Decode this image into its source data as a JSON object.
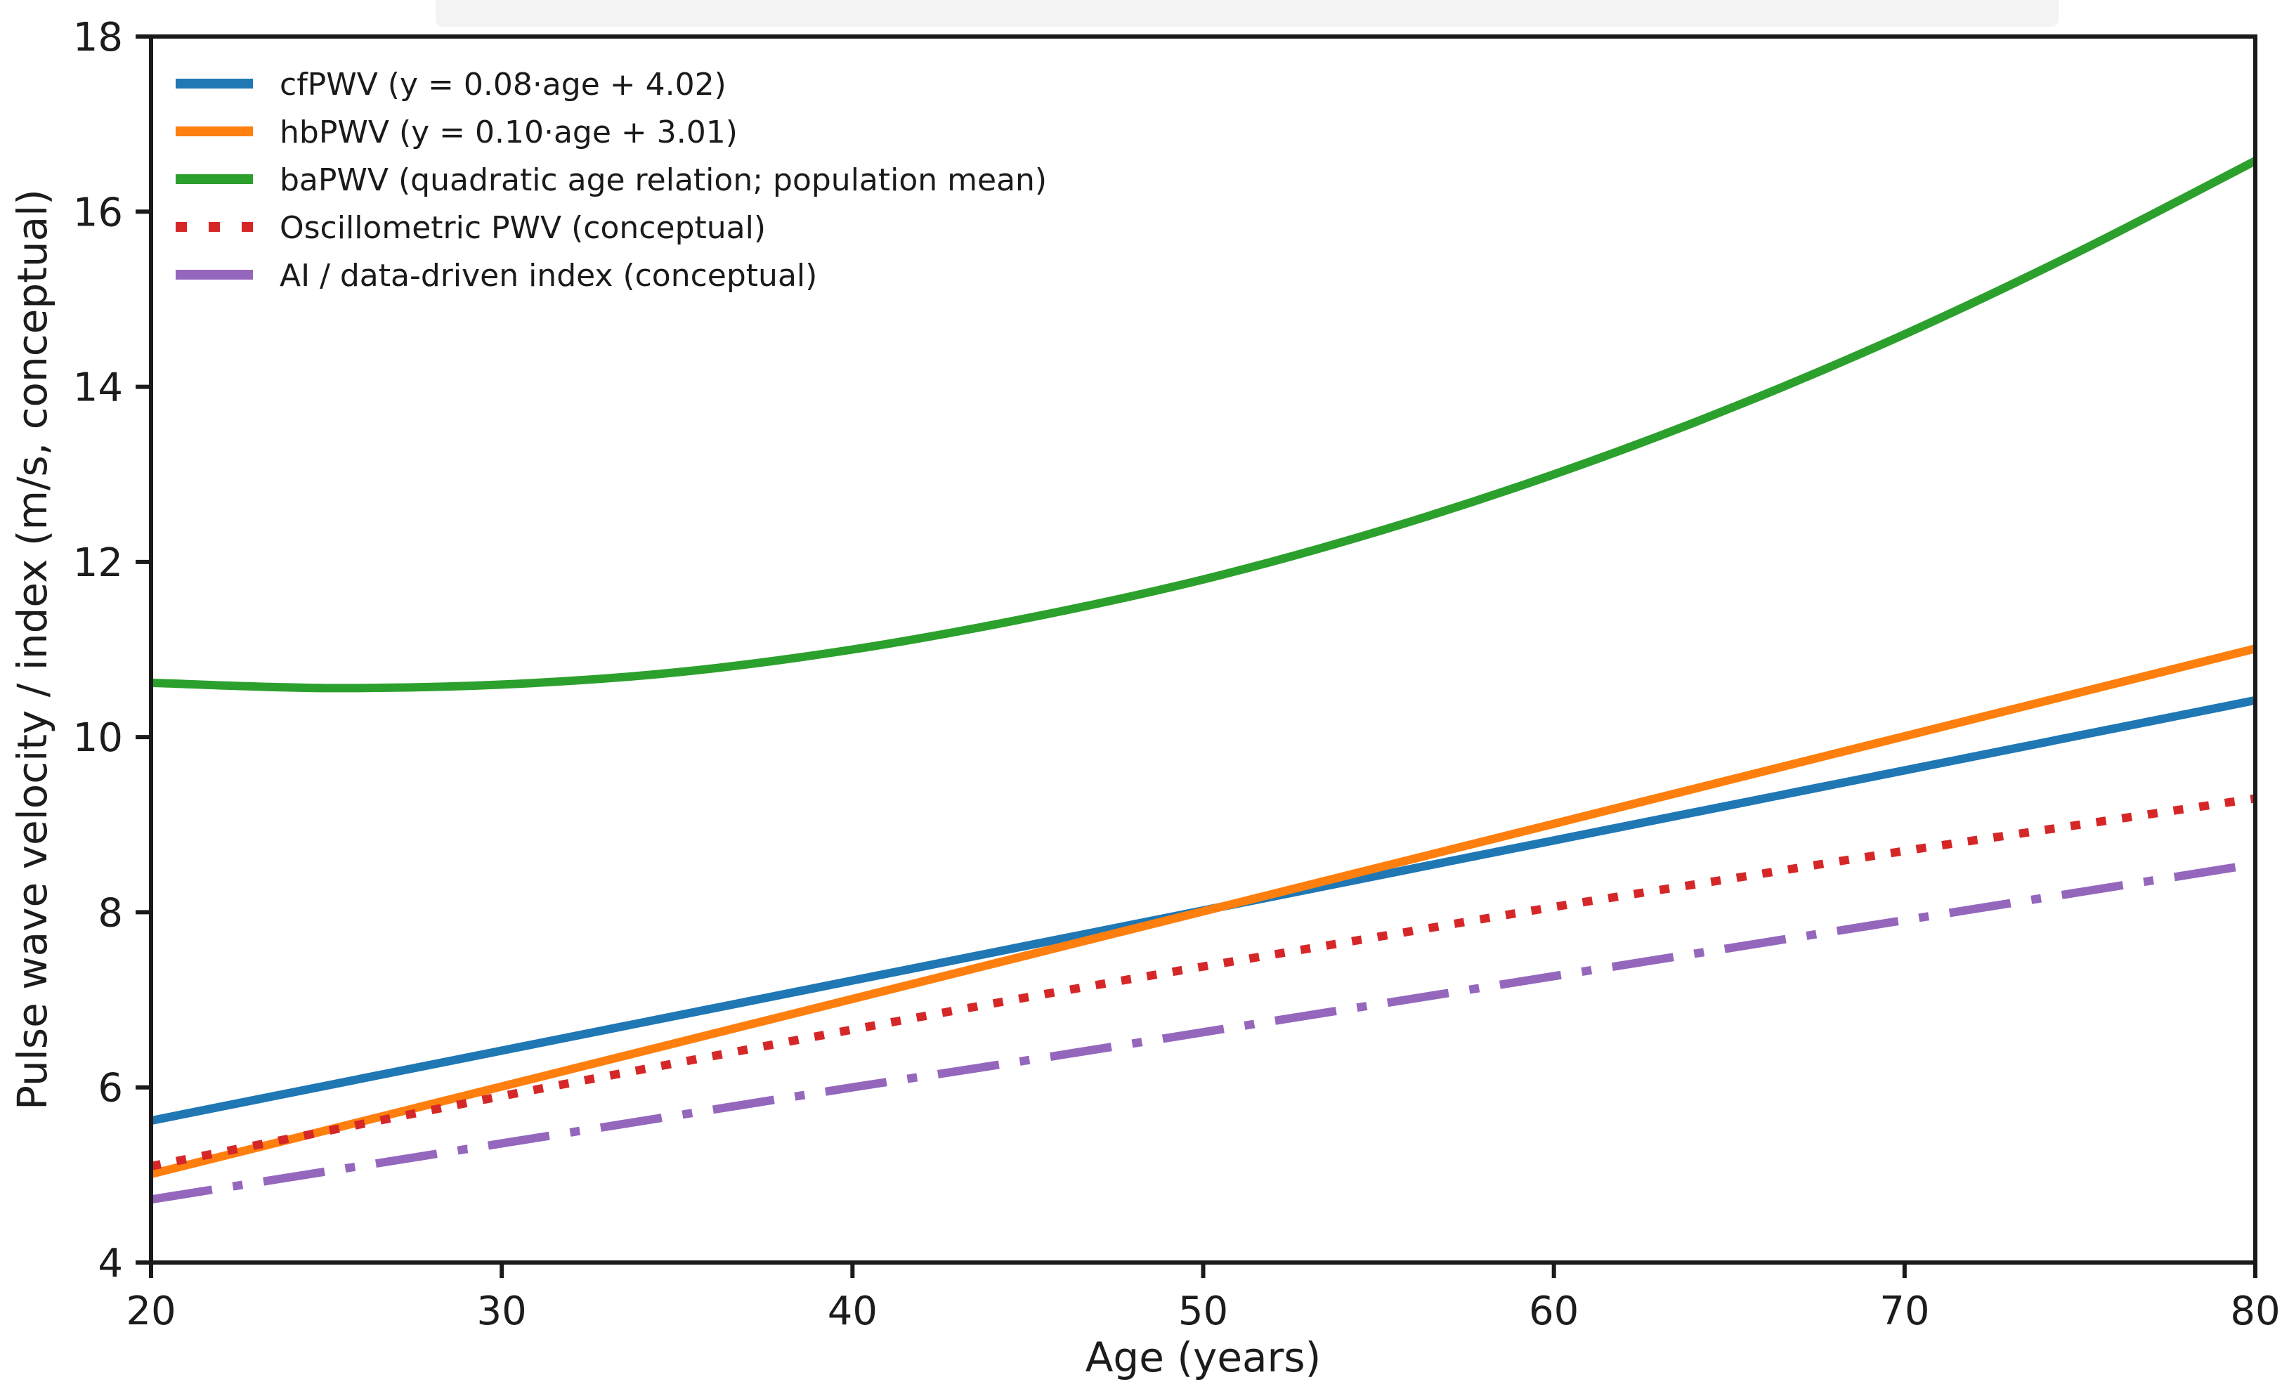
{
  "chart_data": {
    "type": "line",
    "title": "",
    "xlabel": "Age (years)",
    "ylabel": "Pulse wave velocity / index (m/s, conceptual)",
    "xlim": [
      20,
      80
    ],
    "ylim": [
      4,
      18
    ],
    "xticks": [
      20,
      30,
      40,
      50,
      60,
      70,
      80
    ],
    "yticks": [
      4,
      6,
      8,
      10,
      12,
      14,
      16,
      18
    ],
    "grid": false,
    "legend_position": "upper left",
    "x": [
      20,
      25,
      30,
      35,
      40,
      45,
      50,
      55,
      60,
      65,
      70,
      75,
      80
    ],
    "series": [
      {
        "name": "cfPWV (y = 0.08·age + 4.02)",
        "color": "#1f77b4",
        "style": "solid",
        "values": [
          5.62,
          6.02,
          6.42,
          6.82,
          7.22,
          7.62,
          8.02,
          8.42,
          8.82,
          9.22,
          9.62,
          10.02,
          10.42
        ]
      },
      {
        "name": "hbPWV (y = 0.10·age + 3.01)",
        "color": "#ff7f0e",
        "style": "solid",
        "values": [
          5.01,
          5.51,
          6.01,
          6.51,
          7.01,
          7.51,
          8.01,
          8.51,
          9.01,
          9.51,
          10.01,
          10.51,
          11.01
        ]
      },
      {
        "name": "baPWV (quadratic age relation; population mean)",
        "color": "#2ca02c",
        "style": "solid",
        "values": [
          10.62,
          10.56,
          10.6,
          10.74,
          11.0,
          11.36,
          11.8,
          12.35,
          13.0,
          13.75,
          14.6,
          15.55,
          16.58
        ]
      },
      {
        "name": "Oscillometric PWV (conceptual)",
        "color": "#d62728",
        "style": "dotted",
        "values": [
          5.1,
          5.5,
          5.9,
          6.28,
          6.66,
          7.03,
          7.38,
          7.72,
          8.06,
          8.38,
          8.7,
          9.0,
          9.3
        ]
      },
      {
        "name": "AI / data-driven index (conceptual)",
        "color": "#9467bd",
        "style": "dashdot",
        "values": [
          4.72,
          5.04,
          5.36,
          5.68,
          6.0,
          6.31,
          6.63,
          6.95,
          7.27,
          7.59,
          7.91,
          8.23,
          8.55
        ]
      }
    ]
  }
}
